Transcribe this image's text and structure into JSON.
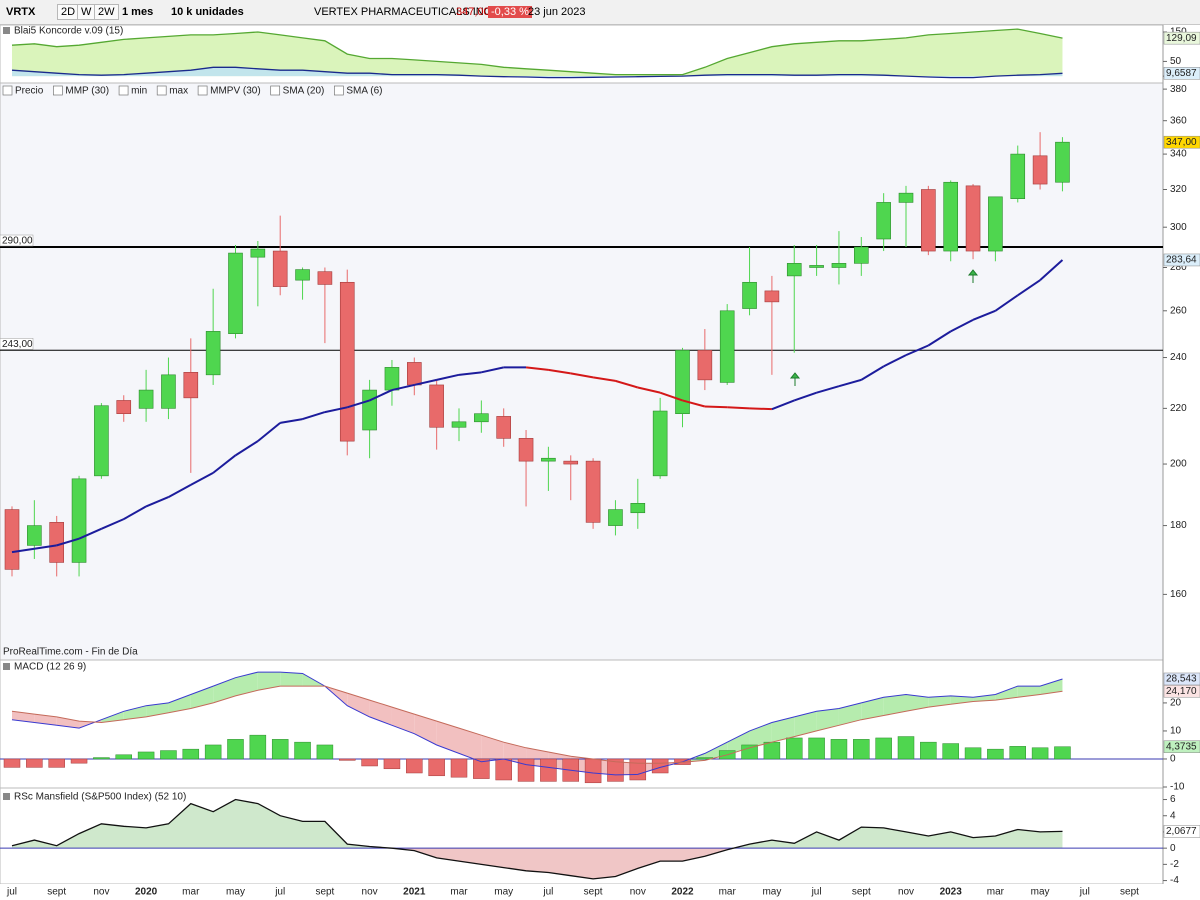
{
  "toolbar": {
    "symbol": "VRTX",
    "periods": [
      "2D",
      "W",
      "2W"
    ],
    "timeframe": "1 mes",
    "units": "10 k unidades",
    "name": "VERTEX PHARMACEUTICALS INC.",
    "price": "347,00",
    "change": "-0,33 %",
    "date": "23 jun 2023"
  },
  "footer": "ProRealTime.com - Fin de Día",
  "x_labels": [
    "jul",
    "sept",
    "nov",
    "2020",
    "mar",
    "may",
    "jul",
    "sept",
    "nov",
    "2021",
    "mar",
    "may",
    "jul",
    "sept",
    "nov",
    "2022",
    "mar",
    "may",
    "jul",
    "sept",
    "nov",
    "2023",
    "mar",
    "may",
    "jul",
    "sept"
  ],
  "chart_data": [
    {
      "type": "area",
      "title": "Blai5 Koncorde v.09 (15)",
      "ylim": [
        -20,
        167
      ],
      "yticks": [
        150,
        50,
        0
      ],
      "series": [
        {
          "color": "#55a832",
          "fill": "#d6f3b4",
          "tag_color": "#e9f7dc",
          "values": [
            105,
            110,
            100,
            105,
            115,
            125,
            130,
            135,
            140,
            140,
            145,
            150,
            140,
            130,
            120,
            75,
            60,
            60,
            55,
            50,
            45,
            40,
            30,
            25,
            20,
            15,
            10,
            5,
            5,
            5,
            5,
            30,
            60,
            80,
            100,
            110,
            115,
            120,
            120,
            125,
            130,
            140,
            145,
            150,
            155,
            160,
            145,
            129.09
          ],
          "value_labels": [
            null,
            null,
            null,
            null,
            null,
            null,
            null,
            null,
            null,
            null,
            null,
            null,
            null,
            null,
            null,
            null,
            null,
            null,
            null,
            null,
            null,
            null,
            null,
            null,
            null,
            null,
            null,
            null,
            null,
            null,
            null,
            null,
            null,
            null,
            null,
            null,
            null,
            null,
            null,
            null,
            null,
            null,
            null,
            null,
            null,
            null,
            null,
            "129,09"
          ]
        },
        {
          "color": "#1a2a8c",
          "fill": "#bfe3f2",
          "tag_color": "#dbeefa",
          "values": [
            20,
            15,
            10,
            5,
            3,
            5,
            10,
            15,
            20,
            30,
            30,
            25,
            20,
            20,
            15,
            10,
            10,
            5,
            5,
            5,
            3,
            0,
            -2,
            -3,
            -5,
            -5,
            -4,
            -3,
            -2,
            -1,
            0,
            3,
            5,
            5,
            5,
            3,
            3,
            5,
            5,
            3,
            0,
            -3,
            -5,
            -5,
            0,
            3,
            5,
            9.6587
          ],
          "value_labels": [
            null,
            null,
            null,
            null,
            null,
            null,
            null,
            null,
            null,
            null,
            null,
            null,
            null,
            null,
            null,
            null,
            null,
            null,
            null,
            null,
            null,
            null,
            null,
            null,
            null,
            null,
            null,
            null,
            null,
            null,
            null,
            null,
            null,
            null,
            null,
            null,
            null,
            null,
            null,
            null,
            null,
            null,
            null,
            null,
            null,
            null,
            null,
            "9,6587"
          ]
        }
      ]
    },
    {
      "type": "candlestick",
      "log": true,
      "ylim": [
        143,
        384
      ],
      "yticks": [
        160,
        180,
        200,
        220,
        240,
        260,
        280,
        300,
        320,
        340,
        360,
        380
      ],
      "indicators": [
        "Precio",
        "MMP (30)",
        "min",
        "max",
        "MMPV (30)",
        "SMA (20)",
        "SMA (6)"
      ],
      "up_color": "#4fd64f",
      "down_color": "#e86a6a",
      "tag_color": "#ffd700",
      "hlines": [
        {
          "value": 290,
          "label": "290,00"
        },
        {
          "value": 243,
          "label": "243,00"
        }
      ],
      "open": [
        185,
        174,
        181,
        169,
        196,
        223,
        220,
        220,
        234,
        233,
        250,
        285,
        288,
        274,
        278,
        273,
        212,
        227,
        238,
        229,
        213,
        215,
        217,
        209,
        201,
        201,
        201,
        180,
        184,
        196,
        218,
        243,
        230,
        261,
        269,
        276,
        280,
        280,
        282,
        294,
        313,
        320,
        288,
        322,
        288,
        315,
        339,
        324
      ],
      "high": [
        186,
        188,
        183,
        196,
        222,
        225,
        235,
        240,
        248,
        270,
        291,
        293,
        306,
        280,
        280,
        279,
        231,
        239,
        240,
        231,
        220,
        223,
        220,
        212,
        206,
        203,
        202,
        188,
        195,
        224,
        244,
        252,
        263,
        290,
        276,
        291,
        291,
        298,
        295,
        318,
        322,
        322,
        325,
        323,
        316,
        345,
        353,
        350
      ],
      "low": [
        165,
        170,
        165,
        165,
        195,
        215,
        215,
        216,
        197,
        229,
        248,
        262,
        267,
        265,
        246,
        203,
        202,
        221,
        225,
        205,
        208,
        211,
        206,
        186,
        191,
        188,
        179,
        177,
        179,
        195,
        213,
        227,
        229,
        258,
        233,
        242,
        276,
        272,
        276,
        288,
        290,
        286,
        283,
        284,
        283,
        313,
        320,
        319
      ],
      "close": [
        167,
        180,
        169,
        195,
        221,
        218,
        227,
        233,
        224,
        251,
        287,
        289,
        271,
        279,
        272,
        208,
        227,
        236,
        229,
        213,
        215,
        218,
        209,
        201,
        202,
        200,
        181,
        185,
        187,
        219,
        243,
        231,
        260,
        273,
        264,
        282,
        281,
        282,
        290,
        313,
        318,
        288,
        324,
        288,
        316,
        340,
        323,
        347
      ],
      "value_labels": [
        null,
        null,
        null,
        null,
        null,
        null,
        null,
        null,
        null,
        null,
        null,
        null,
        null,
        null,
        null,
        null,
        null,
        null,
        null,
        null,
        null,
        null,
        null,
        null,
        null,
        null,
        null,
        null,
        null,
        null,
        null,
        null,
        null,
        null,
        null,
        null,
        null,
        null,
        null,
        null,
        null,
        null,
        null,
        null,
        null,
        null,
        null,
        "347,00"
      ],
      "series": [
        {
          "color": "#1c1c9c",
          "down_color": "#d41818",
          "tag_color": "#dbeefa",
          "values": [
            172,
            173,
            174,
            176,
            179,
            182,
            186,
            189,
            193,
            197,
            203,
            208,
            214.6,
            216,
            218.6,
            220.4,
            223,
            227,
            229,
            231,
            233,
            234,
            236,
            236,
            235,
            233.6,
            232,
            230.6,
            228,
            226,
            223,
            220.7,
            220.4,
            220,
            219.7,
            223,
            226,
            228.5,
            231,
            236.4,
            241,
            245,
            251,
            256,
            260,
            267,
            274,
            283.64
          ],
          "value_labels": [
            null,
            null,
            null,
            null,
            null,
            null,
            null,
            null,
            null,
            null,
            null,
            null,
            null,
            null,
            null,
            null,
            null,
            null,
            null,
            null,
            null,
            null,
            null,
            null,
            null,
            null,
            null,
            null,
            null,
            null,
            null,
            null,
            null,
            null,
            null,
            null,
            null,
            null,
            null,
            null,
            null,
            null,
            null,
            null,
            null,
            null,
            null,
            "283,64"
          ]
        }
      ]
    },
    {
      "type": "combo",
      "title": "MACD (12 26 9)",
      "ylim": [
        -10,
        34.6
      ],
      "yticks": [
        20,
        10,
        0,
        -10
      ],
      "bars": {
        "up_color": "#4fd64f",
        "down_color": "#e86a6a",
        "tag_color": "#bff0bf",
        "values": [
          -3,
          -3,
          -3,
          -1.5,
          0.5,
          1.5,
          2.5,
          3,
          3.5,
          5,
          7,
          8.5,
          7,
          6,
          5,
          -0.5,
          -2.5,
          -3.5,
          -5,
          -6,
          -6.5,
          -7,
          -7.5,
          -8,
          -8,
          -8,
          -8.5,
          -8,
          -7.5,
          -5,
          -2,
          0.5,
          3,
          5,
          6,
          7.5,
          7.5,
          7,
          7,
          7.5,
          8,
          6,
          5.5,
          4,
          3.5,
          4.5,
          4,
          4.3735
        ],
        "value_labels": [
          null,
          null,
          null,
          null,
          null,
          null,
          null,
          null,
          null,
          null,
          null,
          null,
          null,
          null,
          null,
          null,
          null,
          null,
          null,
          null,
          null,
          null,
          null,
          null,
          null,
          null,
          null,
          null,
          null,
          null,
          null,
          null,
          null,
          null,
          null,
          null,
          null,
          null,
          null,
          null,
          null,
          null,
          null,
          null,
          null,
          null,
          null,
          "4,3735"
        ]
      },
      "fill_up": "#b6ecae",
      "fill_down": "#f2c0c0",
      "series": [
        {
          "color": "#3a3ad0",
          "tag_color": "#dbe6fa",
          "values": [
            14,
            13,
            12,
            11,
            14,
            17,
            19,
            20,
            23,
            26,
            29,
            31,
            31,
            30.5,
            26,
            19,
            15,
            12,
            9,
            5,
            2,
            -1,
            0,
            -2,
            -3,
            -4,
            -5,
            -5.7,
            -5.5,
            -3,
            -1,
            2,
            6,
            10,
            13,
            15,
            17,
            18,
            20,
            22,
            23,
            22,
            22.5,
            22,
            23,
            26,
            26,
            28.543
          ],
          "value_labels": [
            null,
            null,
            null,
            null,
            null,
            null,
            null,
            null,
            null,
            null,
            null,
            null,
            null,
            null,
            null,
            null,
            null,
            null,
            null,
            null,
            null,
            null,
            null,
            null,
            null,
            null,
            null,
            null,
            null,
            null,
            null,
            null,
            null,
            null,
            null,
            null,
            null,
            null,
            null,
            null,
            null,
            null,
            null,
            null,
            null,
            null,
            null,
            "28,543"
          ]
        },
        {
          "color": "#c46a5a",
          "tag_color": "#fbe3e3",
          "values": [
            17,
            16,
            15,
            13.5,
            13,
            14,
            15,
            16.5,
            18,
            20,
            22.5,
            24.5,
            26,
            26,
            26,
            23.5,
            21,
            18.5,
            16,
            13.5,
            11,
            8.5,
            6,
            4,
            2.5,
            1,
            0,
            -1,
            -1.5,
            -1.5,
            -1.2,
            -0.5,
            1.5,
            4,
            6,
            8,
            10,
            12,
            14,
            15.5,
            17,
            18.5,
            19.5,
            20.5,
            21,
            22,
            23,
            24.17
          ],
          "value_labels": [
            null,
            null,
            null,
            null,
            null,
            null,
            null,
            null,
            null,
            null,
            null,
            null,
            null,
            null,
            null,
            null,
            null,
            null,
            null,
            null,
            null,
            null,
            null,
            null,
            null,
            null,
            null,
            null,
            null,
            null,
            null,
            null,
            null,
            null,
            null,
            null,
            null,
            null,
            null,
            null,
            null,
            null,
            null,
            null,
            null,
            null,
            null,
            "24,170"
          ]
        }
      ]
    },
    {
      "type": "area",
      "title": "RSc Mansfield (S&P500 Index) (52 10)",
      "ylim": [
        -4.3,
        7.3
      ],
      "yticks": [
        6,
        4,
        2,
        0,
        -2,
        -4
      ],
      "series": [
        {
          "color": "#111111",
          "fill": "#cfe8cc",
          "fill_below": "#f0c6c6",
          "tag_color": "#ffffff",
          "values": [
            0.3,
            1,
            0.3,
            1.8,
            3,
            2.7,
            2.5,
            3,
            5.5,
            4.5,
            6,
            5.5,
            4,
            3.3,
            3.3,
            0.5,
            0.2,
            0,
            -0.3,
            -1.2,
            -1.6,
            -2,
            -2.4,
            -2.8,
            -3,
            -3.4,
            -3.8,
            -3.5,
            -2.5,
            -1.6,
            -1.6,
            -1,
            -0.2,
            0.5,
            1,
            0.6,
            2,
            1,
            2.6,
            2.5,
            2,
            1.5,
            2,
            1.3,
            1.5,
            2.3,
            2,
            2.0677
          ],
          "value_labels": [
            null,
            null,
            null,
            null,
            null,
            null,
            null,
            null,
            null,
            null,
            null,
            null,
            null,
            null,
            null,
            null,
            null,
            null,
            null,
            null,
            null,
            null,
            null,
            null,
            null,
            null,
            null,
            null,
            null,
            null,
            null,
            null,
            null,
            null,
            null,
            null,
            null,
            null,
            null,
            null,
            null,
            null,
            null,
            null,
            null,
            null,
            null,
            "2,0677"
          ]
        }
      ]
    }
  ]
}
